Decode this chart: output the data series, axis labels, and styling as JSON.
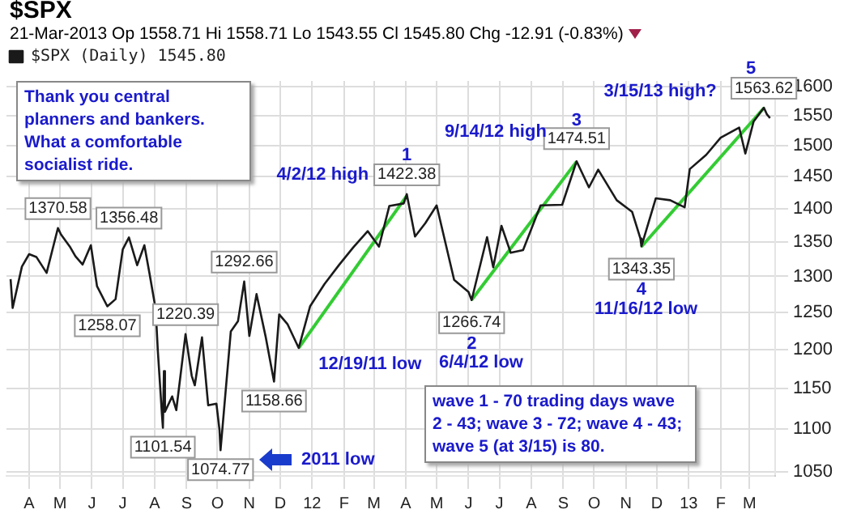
{
  "chart_data": {
    "type": "line",
    "title": "$SPX",
    "subtitle": "21-Mar-2013   Op 1558.71  Hi 1558.71  Lo 1543.55  Cl 1545.80  Chg -12.91 (-0.83%)",
    "log": true,
    "grid": true,
    "legend": "top left",
    "marker": "none",
    "line_style": "solid",
    "x": [
      "2011-03-14",
      "2011-03-16",
      "2011-03-25",
      "2011-04-01",
      "2011-04-08",
      "2011-04-18",
      "2011-04-29",
      "2011-05-02",
      "2011-05-11",
      "2011-05-16",
      "2011-05-23",
      "2011-05-31",
      "2011-06-06",
      "2011-06-16",
      "2011-06-24",
      "2011-07-01",
      "2011-07-07",
      "2011-07-15",
      "2011-07-22",
      "2011-07-27",
      "2011-08-02",
      "2011-08-04",
      "2011-08-08",
      "2011-08-09",
      "2011-08-10",
      "2011-08-11",
      "2011-08-18",
      "2011-08-22",
      "2011-08-31",
      "2011-09-06",
      "2011-09-09",
      "2011-09-16",
      "2011-09-22",
      "2011-09-30",
      "2011-10-03",
      "2011-10-04",
      "2011-10-14",
      "2011-10-21",
      "2011-10-27",
      "2011-11-01",
      "2011-11-08",
      "2011-11-17",
      "2011-11-25",
      "2011-11-30",
      "2011-12-08",
      "2011-12-19",
      "2011-12-30",
      "2012-01-13",
      "2012-01-27",
      "2012-02-10",
      "2012-02-24",
      "2012-03-06",
      "2012-03-16",
      "2012-03-30",
      "2012-04-02",
      "2012-04-10",
      "2012-04-20",
      "2012-05-01",
      "2012-05-18",
      "2012-06-01",
      "2012-06-04",
      "2012-06-19",
      "2012-06-25",
      "2012-07-03",
      "2012-07-12",
      "2012-07-24",
      "2012-08-10",
      "2012-08-31",
      "2012-09-14",
      "2012-09-26",
      "2012-10-05",
      "2012-10-23",
      "2012-11-07",
      "2012-11-15",
      "2012-11-16",
      "2012-11-30",
      "2012-12-14",
      "2012-12-28",
      "2013-01-02",
      "2013-01-18",
      "2013-02-01",
      "2013-02-19",
      "2013-02-25",
      "2013-03-05",
      "2013-03-15",
      "2013-03-18",
      "2013-03-21"
    ],
    "series": [
      {
        "name": "$SPX (Daily) 1545.80",
        "color": "#1a1a1a",
        "values": [
          1296,
          1256,
          1314,
          1332,
          1328,
          1305,
          1370.58,
          1361,
          1342,
          1329,
          1317,
          1345,
          1286,
          1258.07,
          1268,
          1339,
          1356.48,
          1316,
          1345,
          1304,
          1254,
          1200,
          1119,
          1101.54,
          1172,
          1121,
          1140,
          1123,
          1220.39,
          1166,
          1154,
          1216,
          1129,
          1131,
          1099,
          1074.77,
          1224,
          1238,
          1292.66,
          1218,
          1275,
          1216,
          1158.66,
          1247,
          1234,
          1202,
          1258,
          1289,
          1316,
          1342,
          1366,
          1343,
          1404,
          1408,
          1422.38,
          1358,
          1378,
          1405,
          1295,
          1278,
          1266.74,
          1357,
          1313,
          1374,
          1334,
          1338,
          1405,
          1406,
          1474.51,
          1433,
          1461,
          1413,
          1395,
          1355,
          1343.35,
          1416,
          1413,
          1402,
          1462,
          1485,
          1513,
          1530,
          1487,
          1540,
          1563.62,
          1552,
          1546
        ]
      },
      {
        "type": "line",
        "color": "#33cc33",
        "x": [
          "2011-12-19",
          "2012-04-02"
        ],
        "values": [
          1202,
          1420
        ]
      },
      {
        "type": "line",
        "color": "#33cc33",
        "x": [
          "2012-06-04",
          "2012-09-14"
        ],
        "values": [
          1267,
          1474
        ]
      },
      {
        "type": "line",
        "color": "#33cc33",
        "x": [
          "2012-11-16",
          "2013-03-15"
        ],
        "values": [
          1343,
          1563
        ]
      }
    ],
    "xlim": [
      "2011-03-10",
      "2013-03-26"
    ],
    "xticks": [
      {
        "value": "2011-04-01",
        "label": "A"
      },
      {
        "value": "2011-05-01",
        "label": "M"
      },
      {
        "value": "2011-06-01",
        "label": "J"
      },
      {
        "value": "2011-07-01",
        "label": "J"
      },
      {
        "value": "2011-08-01",
        "label": "A"
      },
      {
        "value": "2011-09-01",
        "label": "S"
      },
      {
        "value": "2011-10-01",
        "label": "O"
      },
      {
        "value": "2011-11-01",
        "label": "N"
      },
      {
        "value": "2011-12-01",
        "label": "D"
      },
      {
        "value": "2012-01-01",
        "label": "12"
      },
      {
        "value": "2012-02-01",
        "label": "F"
      },
      {
        "value": "2012-03-01",
        "label": "M"
      },
      {
        "value": "2012-04-01",
        "label": "A"
      },
      {
        "value": "2012-05-01",
        "label": "M"
      },
      {
        "value": "2012-06-01",
        "label": "J"
      },
      {
        "value": "2012-07-01",
        "label": "J"
      },
      {
        "value": "2012-08-01",
        "label": "A"
      },
      {
        "value": "2012-09-01",
        "label": "S"
      },
      {
        "value": "2012-10-01",
        "label": "O"
      },
      {
        "value": "2012-11-01",
        "label": "N"
      },
      {
        "value": "2012-12-01",
        "label": "D"
      },
      {
        "value": "2013-01-01",
        "label": "13"
      },
      {
        "value": "2013-02-01",
        "label": "F"
      },
      {
        "value": "2013-03-01",
        "label": "M"
      }
    ],
    "ylim": [
      1045,
      1610
    ],
    "yticks": [
      1050,
      1100,
      1150,
      1200,
      1250,
      1300,
      1350,
      1400,
      1450,
      1500,
      1550,
      1600
    ],
    "annotations": [
      {
        "text": "1370.58",
        "x": "2011-04-29",
        "y": 1370.58
      },
      {
        "text": "1258.07",
        "x": "2011-06-16",
        "y": 1258.07
      },
      {
        "text": "1356.48",
        "x": "2011-07-07",
        "y": 1356.48
      },
      {
        "text": "1101.54",
        "x": "2011-08-09",
        "y": 1101.54
      },
      {
        "text": "1220.39",
        "x": "2011-08-31",
        "y": 1220.39
      },
      {
        "text": "1074.77",
        "x": "2011-10-04",
        "y": 1074.77
      },
      {
        "text": "1292.66",
        "x": "2011-10-27",
        "y": 1292.66
      },
      {
        "text": "1158.66",
        "x": "2011-11-25",
        "y": 1158.66
      },
      {
        "text": "1422.38",
        "x": "2012-04-02",
        "y": 1422.38
      },
      {
        "text": "1266.74",
        "x": "2012-06-04",
        "y": 1266.74
      },
      {
        "text": "1474.51",
        "x": "2012-09-14",
        "y": 1474.51
      },
      {
        "text": "1343.35",
        "x": "2012-11-16",
        "y": 1343.35
      },
      {
        "text": "1563.62",
        "x": "2013-03-15",
        "y": 1563.62
      },
      {
        "text": "12/19/11 low",
        "x": "2011-12-19",
        "y": 1202
      },
      {
        "text": "4/2/12 high",
        "x": "2012-04-02",
        "y": 1422.38
      },
      {
        "text": "1",
        "x": "2012-04-02",
        "y": 1422.38
      },
      {
        "text": "2",
        "x": "2012-06-04",
        "y": 1266.74
      },
      {
        "text": "3",
        "x": "2012-09-14",
        "y": 1474.51
      },
      {
        "text": "9/14/12 high",
        "x": "2012-09-14",
        "y": 1474.51
      },
      {
        "text": "4",
        "x": "2012-11-16",
        "y": 1343.35
      },
      {
        "text": "5",
        "x": "2013-03-15",
        "y": 1563.62
      },
      {
        "text": "3/15/13 high?",
        "x": "2013-03-15",
        "y": 1563.62
      },
      "6/4/12 low",
      "11/16/12 low",
      "2011 low",
      "Thank you central planners and bankers. What a comfortable socialist ride.",
      "wave 1 - 70 trading days wave 2 - 43; wave 3 - 72; wave 4 - 43; wave 5 (at 3/15) is 80."
    ]
  }
}
